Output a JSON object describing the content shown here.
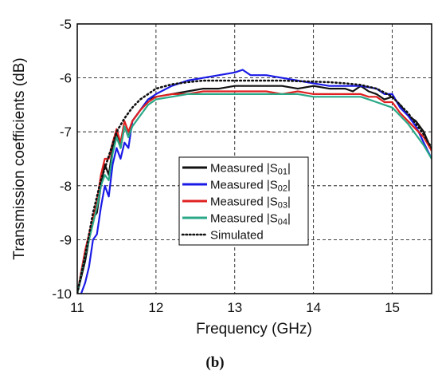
{
  "chart_data": {
    "type": "line",
    "xlabel": "Frequency (GHz)",
    "ylabel": "Transmission coefficients (dB)",
    "xlim": [
      11,
      15.5
    ],
    "ylim": [
      -10,
      -5
    ],
    "xticks": [
      "11",
      "12",
      "13",
      "14",
      "15"
    ],
    "yticks": [
      "-10",
      "-9",
      "-8",
      "-7",
      "-6",
      "-5"
    ],
    "grid": true,
    "legend_position": "center-left",
    "caption": "(b)",
    "series": [
      {
        "name": "Measured |S01|",
        "label_main": "Measured |S",
        "label_sub": "01",
        "label_end": "|",
        "color": "#111111",
        "style": "solid",
        "x": [
          11.0,
          11.05,
          11.1,
          11.15,
          11.2,
          11.25,
          11.3,
          11.35,
          11.4,
          11.45,
          11.5,
          11.55,
          11.6,
          11.65,
          11.7,
          11.8,
          11.9,
          12.0,
          12.2,
          12.4,
          12.6,
          12.8,
          13.0,
          13.2,
          13.4,
          13.6,
          13.8,
          14.0,
          14.2,
          14.4,
          14.5,
          14.6,
          14.7,
          14.8,
          14.9,
          15.0,
          15.1,
          15.2,
          15.3,
          15.4,
          15.5
        ],
        "y": [
          -10.0,
          -9.7,
          -9.4,
          -9.0,
          -8.6,
          -8.5,
          -8.0,
          -7.6,
          -7.8,
          -7.3,
          -7.0,
          -7.3,
          -6.9,
          -7.1,
          -6.8,
          -6.6,
          -6.4,
          -6.35,
          -6.3,
          -6.25,
          -6.2,
          -6.2,
          -6.15,
          -6.15,
          -6.15,
          -6.15,
          -6.2,
          -6.15,
          -6.2,
          -6.2,
          -6.25,
          -6.15,
          -6.25,
          -6.3,
          -6.4,
          -6.35,
          -6.5,
          -6.7,
          -6.8,
          -7.0,
          -7.35
        ]
      },
      {
        "name": "Measured |S02|",
        "label_main": "Measured |S",
        "label_sub": "02",
        "label_end": "|",
        "color": "#1a1ae6",
        "style": "solid",
        "x": [
          11.05,
          11.1,
          11.15,
          11.2,
          11.25,
          11.3,
          11.35,
          11.4,
          11.45,
          11.5,
          11.55,
          11.6,
          11.65,
          11.7,
          11.8,
          11.9,
          12.0,
          12.2,
          12.4,
          12.6,
          12.8,
          13.0,
          13.1,
          13.2,
          13.4,
          13.6,
          13.8,
          14.0,
          14.2,
          14.4,
          14.6,
          14.8,
          14.9,
          15.0,
          15.1,
          15.2,
          15.3,
          15.4,
          15.5
        ],
        "y": [
          -10.0,
          -9.8,
          -9.5,
          -9.0,
          -8.9,
          -8.4,
          -8.0,
          -8.2,
          -7.6,
          -7.3,
          -7.5,
          -7.2,
          -7.3,
          -6.8,
          -6.6,
          -6.4,
          -6.3,
          -6.15,
          -6.05,
          -6.0,
          -5.95,
          -5.9,
          -5.85,
          -5.95,
          -5.95,
          -6.0,
          -6.05,
          -6.1,
          -6.15,
          -6.15,
          -6.15,
          -6.2,
          -6.3,
          -6.3,
          -6.55,
          -6.7,
          -6.9,
          -7.2,
          -7.5
        ]
      },
      {
        "name": "Measured |S03|",
        "label_main": "Measured |S",
        "label_sub": "03",
        "label_end": "|",
        "color": "#e02020",
        "style": "solid",
        "x": [
          11.0,
          11.05,
          11.1,
          11.15,
          11.2,
          11.25,
          11.3,
          11.35,
          11.4,
          11.45,
          11.5,
          11.55,
          11.6,
          11.65,
          11.7,
          11.8,
          11.9,
          12.0,
          12.2,
          12.4,
          12.6,
          12.8,
          13.0,
          13.2,
          13.4,
          13.6,
          13.8,
          14.0,
          14.2,
          14.4,
          14.6,
          14.7,
          14.8,
          14.9,
          15.0,
          15.1,
          15.2,
          15.3,
          15.4,
          15.5
        ],
        "y": [
          -10.0,
          -9.6,
          -9.2,
          -8.9,
          -8.6,
          -8.3,
          -7.8,
          -7.5,
          -7.5,
          -7.2,
          -6.95,
          -7.2,
          -6.8,
          -7.0,
          -6.8,
          -6.6,
          -6.45,
          -6.35,
          -6.3,
          -6.3,
          -6.25,
          -6.25,
          -6.25,
          -6.25,
          -6.25,
          -6.3,
          -6.25,
          -6.3,
          -6.3,
          -6.3,
          -6.3,
          -6.35,
          -6.35,
          -6.45,
          -6.45,
          -6.65,
          -6.8,
          -6.95,
          -7.1,
          -7.35
        ]
      },
      {
        "name": "Measured |S04|",
        "label_main": "Measured |S",
        "label_sub": "04",
        "label_end": "|",
        "color": "#2aa888",
        "style": "solid",
        "x": [
          11.0,
          11.05,
          11.1,
          11.15,
          11.2,
          11.25,
          11.3,
          11.35,
          11.4,
          11.45,
          11.5,
          11.55,
          11.6,
          11.65,
          11.7,
          11.8,
          11.9,
          12.0,
          12.2,
          12.4,
          12.6,
          12.8,
          13.0,
          13.2,
          13.4,
          13.6,
          13.8,
          14.0,
          14.2,
          14.4,
          14.6,
          14.7,
          14.8,
          14.9,
          15.0,
          15.1,
          15.2,
          15.3,
          15.4,
          15.5
        ],
        "y": [
          -10.0,
          -9.65,
          -9.3,
          -9.0,
          -8.7,
          -8.4,
          -8.0,
          -7.8,
          -7.9,
          -7.4,
          -7.1,
          -7.3,
          -6.9,
          -7.1,
          -6.9,
          -6.7,
          -6.5,
          -6.4,
          -6.35,
          -6.3,
          -6.3,
          -6.3,
          -6.3,
          -6.3,
          -6.3,
          -6.3,
          -6.3,
          -6.35,
          -6.35,
          -6.35,
          -6.35,
          -6.4,
          -6.45,
          -6.5,
          -6.55,
          -6.7,
          -6.85,
          -7.05,
          -7.25,
          -7.5
        ]
      },
      {
        "name": "Simulated",
        "label_main": "Simulated",
        "label_sub": "",
        "label_end": "",
        "color": "#111111",
        "style": "dotted",
        "x": [
          11.0,
          11.1,
          11.2,
          11.3,
          11.4,
          11.5,
          11.6,
          11.7,
          11.8,
          11.9,
          12.0,
          12.2,
          12.4,
          12.6,
          12.8,
          13.0,
          13.2,
          13.4,
          13.6,
          13.8,
          14.0,
          14.2,
          14.4,
          14.6,
          14.8,
          14.9,
          15.0,
          15.1,
          15.2,
          15.3,
          15.4,
          15.5
        ],
        "y": [
          -10.0,
          -9.3,
          -8.5,
          -7.9,
          -7.45,
          -7.0,
          -6.75,
          -6.55,
          -6.4,
          -6.3,
          -6.2,
          -6.12,
          -6.08,
          -6.05,
          -6.05,
          -6.05,
          -6.05,
          -6.05,
          -6.05,
          -6.06,
          -6.07,
          -6.08,
          -6.1,
          -6.13,
          -6.2,
          -6.27,
          -6.35,
          -6.5,
          -6.65,
          -6.85,
          -7.05,
          -7.3
        ]
      }
    ]
  }
}
